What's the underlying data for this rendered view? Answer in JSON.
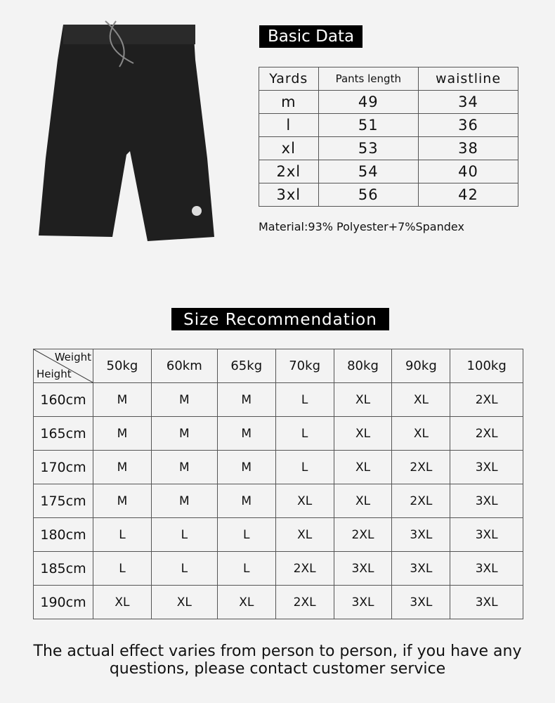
{
  "product_image": {
    "alt": "black shorts"
  },
  "basic_data": {
    "title": "Basic Data",
    "headers": [
      "Yards",
      "Pants length",
      "waistline"
    ],
    "rows": [
      [
        "m",
        "49",
        "34"
      ],
      [
        "l",
        "51",
        "36"
      ],
      [
        "xl",
        "53",
        "38"
      ],
      [
        "2xl",
        "54",
        "40"
      ],
      [
        "3xl",
        "56",
        "42"
      ]
    ],
    "material": "Material:93% Polyester+7%Spandex"
  },
  "size_recommendation": {
    "title": "Size Recommendation",
    "corner_top": "Weight",
    "corner_bottom": "Height",
    "weights": [
      "50kg",
      "60km",
      "65kg",
      "70kg",
      "80kg",
      "90kg",
      "100kg"
    ],
    "rows": [
      {
        "height": "160cm",
        "sizes": [
          "M",
          "M",
          "M",
          "L",
          "XL",
          "XL",
          "2XL"
        ]
      },
      {
        "height": "165cm",
        "sizes": [
          "M",
          "M",
          "M",
          "L",
          "XL",
          "XL",
          "2XL"
        ]
      },
      {
        "height": "170cm",
        "sizes": [
          "M",
          "M",
          "M",
          "L",
          "XL",
          "2XL",
          "3XL"
        ]
      },
      {
        "height": "175cm",
        "sizes": [
          "M",
          "M",
          "M",
          "XL",
          "XL",
          "2XL",
          "3XL"
        ]
      },
      {
        "height": "180cm",
        "sizes": [
          "L",
          "L",
          "L",
          "XL",
          "2XL",
          "3XL",
          "3XL"
        ]
      },
      {
        "height": "185cm",
        "sizes": [
          "L",
          "L",
          "L",
          "2XL",
          "3XL",
          "3XL",
          "3XL"
        ]
      },
      {
        "height": "190cm",
        "sizes": [
          "XL",
          "XL",
          "XL",
          "2XL",
          "3XL",
          "3XL",
          "3XL"
        ]
      }
    ]
  },
  "footer": {
    "line1": "The actual effect varies from person to person, if you have any",
    "line2": "questions, please contact customer service"
  }
}
